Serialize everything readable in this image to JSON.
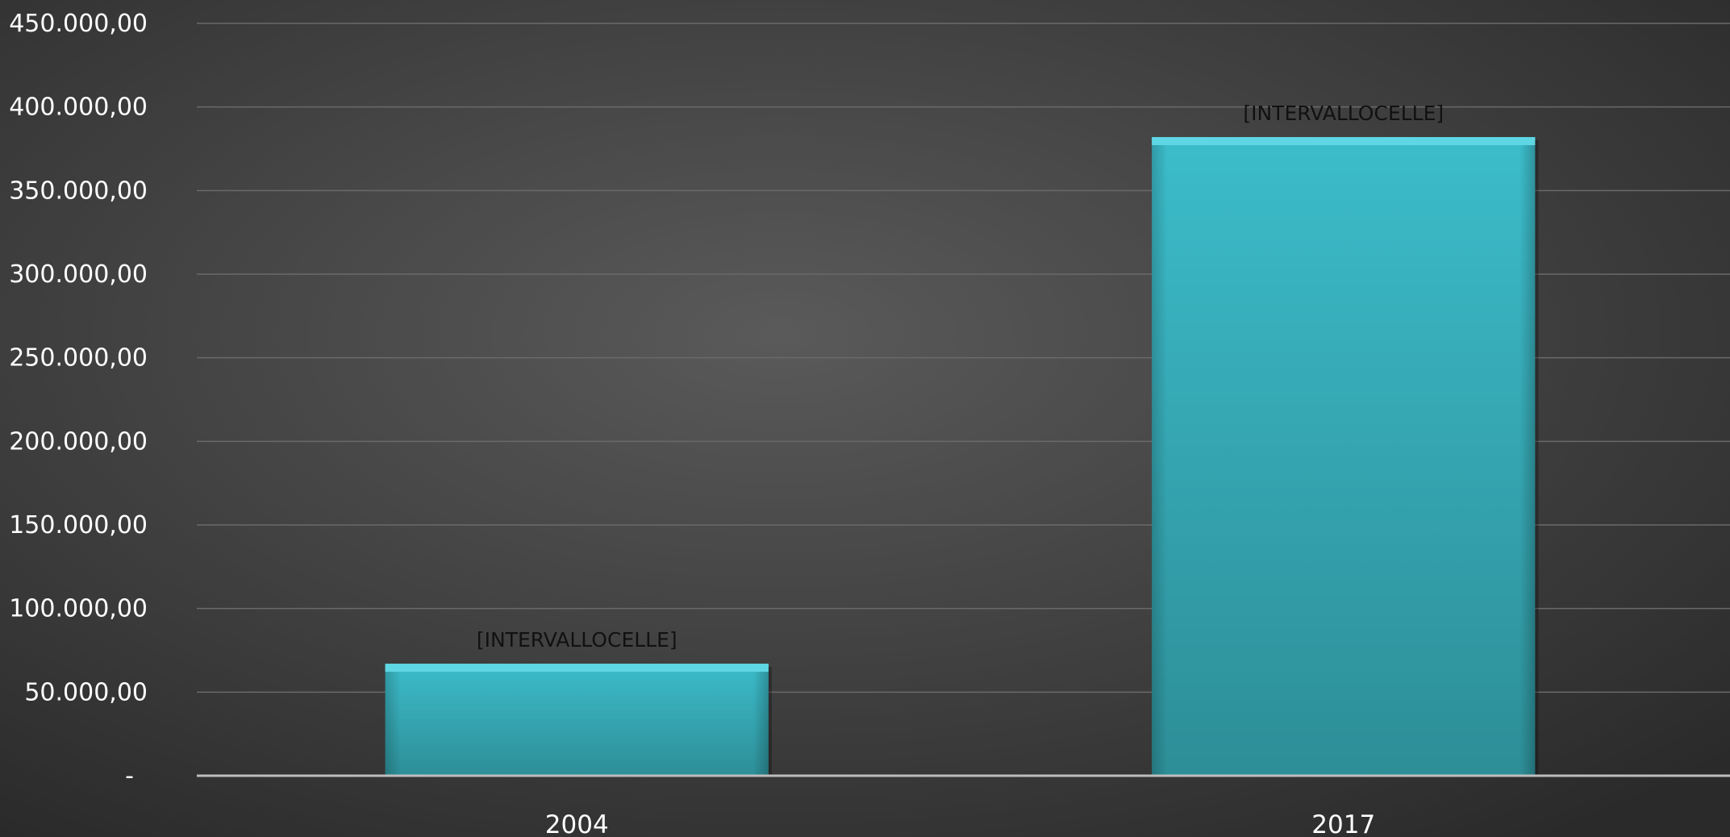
{
  "chart_data": {
    "type": "bar",
    "categories": [
      "2004",
      "2017"
    ],
    "values": [
      67000,
      382000
    ],
    "data_labels": [
      "[INTERVALLOCELLE]",
      "[INTERVALLOCELLE]"
    ],
    "ylim": [
      0,
      450000
    ],
    "yticks": [
      0,
      50000,
      100000,
      150000,
      200000,
      250000,
      300000,
      350000,
      400000,
      450000
    ],
    "ytick_labels": [
      "-",
      "50.000,00",
      "100.000,00",
      "150.000,00",
      "200.000,00",
      "250.000,00",
      "300.000,00",
      "350.000,00",
      "400.000,00",
      "450.000,00"
    ],
    "grid": true,
    "legend": "none",
    "colors": {
      "bar_top": "#5fd6e3",
      "bar_light": "#3cbcca",
      "bar_dark": "#2d8e97",
      "background_center": "#5a5a5a",
      "background_edge": "#2a2a2a",
      "gridline": "#6a6a6a",
      "axis_line": "#bdbdbd",
      "axis_text": "#ffffff",
      "data_label_text": "#111111"
    }
  }
}
